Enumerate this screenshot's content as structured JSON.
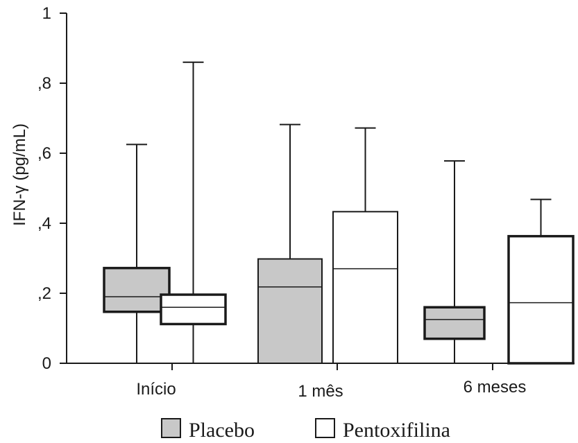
{
  "chart_data": {
    "type": "box",
    "ylabel": "IFN-γ (pg/mL)",
    "xlabel": "",
    "ylim": [
      0,
      1
    ],
    "yticks": [
      0,
      0.2,
      0.4,
      0.6,
      0.8,
      1
    ],
    "ytick_labels": [
      "0",
      ",2",
      ",4",
      ",6",
      ",8",
      "1"
    ],
    "categories": [
      "Início",
      "1 mês",
      "6 meses"
    ],
    "series": [
      {
        "name": "Placebo",
        "color": "#c8c8c8",
        "boxes": [
          {
            "min": 0,
            "q1": 0.147,
            "median": 0.19,
            "q3": 0.272,
            "max": 0.625
          },
          {
            "min": 0,
            "q1": 0,
            "median": 0.218,
            "q3": 0.298,
            "max": 0.682
          },
          {
            "min": 0,
            "q1": 0.07,
            "median": 0.125,
            "q3": 0.16,
            "max": 0.578
          }
        ]
      },
      {
        "name": "Pentoxifilina",
        "color": "#ffffff",
        "boxes": [
          {
            "min": 0,
            "q1": 0.112,
            "median": 0.16,
            "q3": 0.196,
            "max": 0.86
          },
          {
            "min": 0,
            "q1": 0,
            "median": 0.27,
            "q3": 0.433,
            "max": 0.672
          },
          {
            "min": 0,
            "q1": 0,
            "median": 0.173,
            "q3": 0.363,
            "max": 0.468
          }
        ]
      }
    ],
    "legend_position": "bottom",
    "grid": false
  }
}
